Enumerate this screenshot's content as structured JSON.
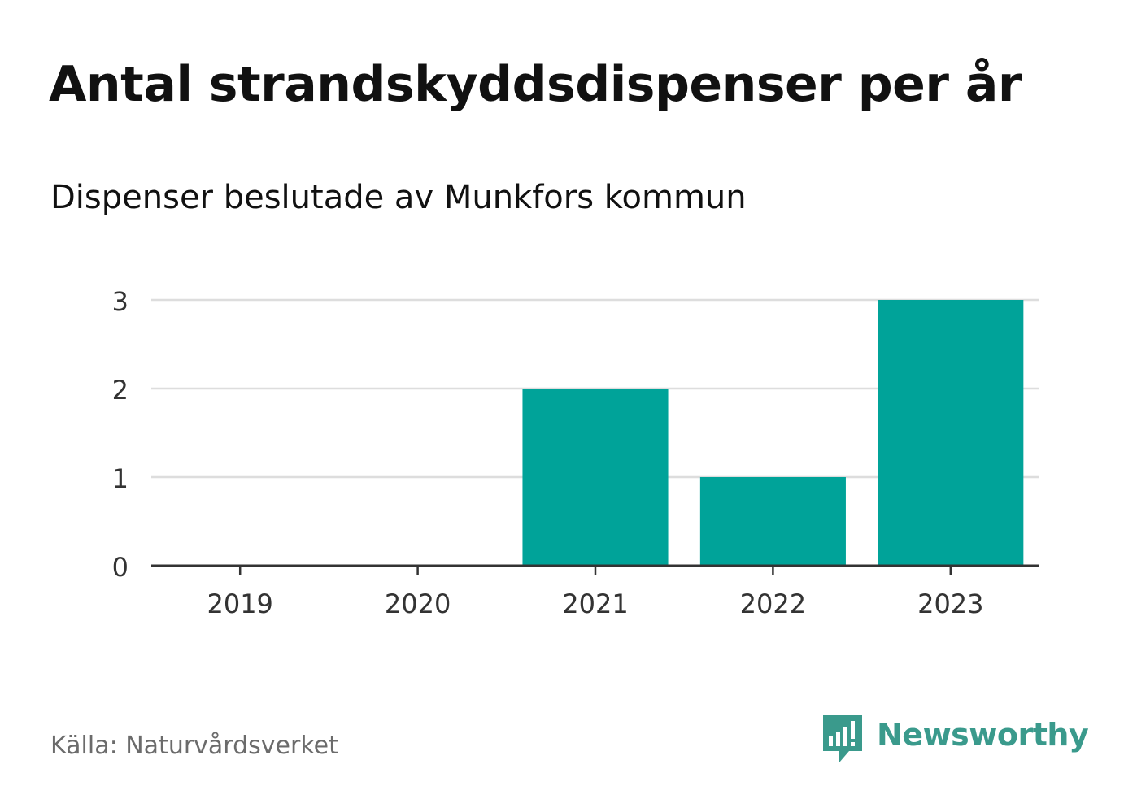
{
  "title": "Antal strandskyddsdispenser per år",
  "subtitle": "Dispenser beslutade av Munkfors kommun",
  "source": "Källa: Naturvårdsverket",
  "brand": {
    "name": "Newsworthy",
    "color": "#3a9a8c",
    "icon": "newsworthy-logo-icon"
  },
  "chart_data": {
    "type": "bar",
    "title": "Antal strandskyddsdispenser per år",
    "subtitle": "Dispenser beslutade av Munkfors kommun",
    "categories": [
      "2019",
      "2020",
      "2021",
      "2022",
      "2023"
    ],
    "values": [
      0,
      0,
      2,
      1,
      3
    ],
    "xlabel": "",
    "ylabel": "",
    "ylim": [
      0,
      3
    ],
    "yticks": [
      0,
      1,
      2,
      3
    ],
    "grid": true,
    "legend": "none",
    "bar_color": "#00a399",
    "grid_color": "#dddddd",
    "axis_color": "#333333",
    "tick_label_color": "#333333"
  }
}
